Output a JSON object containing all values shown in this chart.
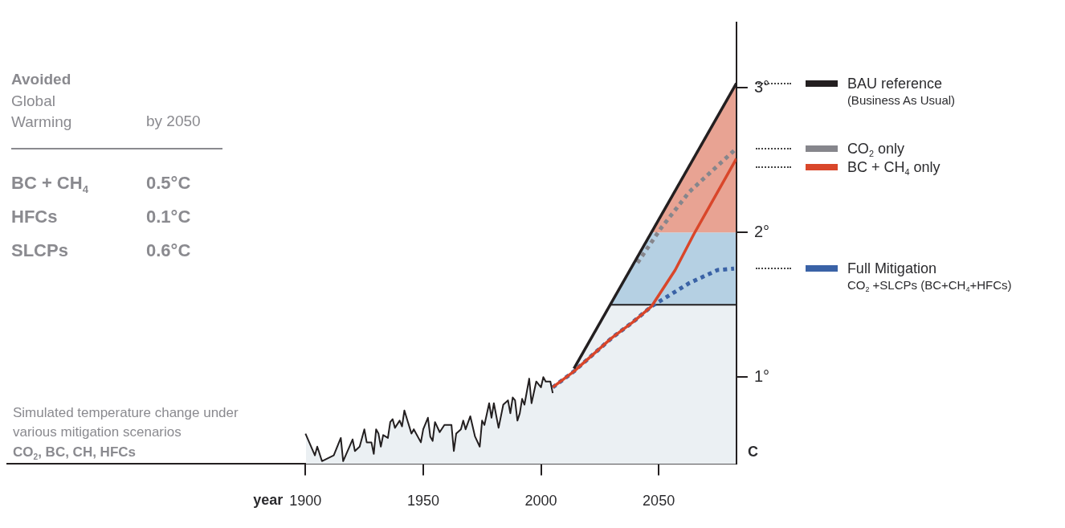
{
  "chart_data": {
    "type": "line",
    "title": "Avoided",
    "subtitle": "Global Warming",
    "xlabel": "year",
    "ylabel": "C",
    "annotations": [
      "by 2050",
      "BC + CH$_{4}$",
      "0.5°C",
      "HFCs",
      "0.1°C",
      "SLCPs",
      "0.6°C",
      "Simulated temperature change under various mitigation scenarios",
      "CO$_{2}$, BC, CH, HFCs"
    ],
    "xlim": [
      1773,
      2083
    ],
    "xticks": [
      1900,
      1950,
      2000,
      2050
    ],
    "ylim": [
      0.4,
      3.45
    ],
    "yticks": [
      {
        "value": 1,
        "label": "1°"
      },
      {
        "value": 2,
        "label": "2°"
      },
      {
        "value": 3,
        "label": "3°"
      }
    ],
    "legend": "right",
    "bands": [
      {
        "axis": "y",
        "from": 0.4,
        "to": 1.5,
        "color": "#ebf0f3"
      },
      {
        "axis": "y",
        "from": 1.5,
        "to": 2,
        "color": "#b5d0e3"
      },
      {
        "axis": "y",
        "from": 2,
        "to": 3.45,
        "color": "#e8a393"
      }
    ],
    "ref_lines": [
      {
        "axis": "y",
        "value": 1.5,
        "color": "#231f20"
      }
    ],
    "series": [
      {
        "color": "#231f20",
        "line_style": "solid",
        "x": [
          1900,
          1904,
          1905,
          1907,
          1912,
          1915,
          1916,
          1920,
          1921,
          1923,
          1925,
          1926,
          1928,
          1929,
          1930,
          1931,
          1932,
          1933,
          1935,
          1936,
          1937,
          1938,
          1940,
          1941,
          1942,
          1945,
          1946,
          1949,
          1950,
          1952,
          1953,
          1954,
          1955,
          1957,
          1959,
          1962,
          1963,
          1964,
          1966,
          1967,
          1968,
          1970,
          1972,
          1974,
          1975,
          1976,
          1978,
          1979,
          1980,
          1982,
          1984,
          1986,
          1987,
          1988,
          1989,
          1990,
          1991,
          1992,
          1993,
          1995,
          1996,
          1998,
          2000,
          2001,
          2002,
          2004,
          2005
        ],
        "values": [
          0.61,
          0.46,
          0.52,
          0.42,
          0.46,
          0.58,
          0.42,
          0.57,
          0.49,
          0.52,
          0.64,
          0.55,
          0.55,
          0.47,
          0.64,
          0.61,
          0.52,
          0.6,
          0.58,
          0.69,
          0.71,
          0.65,
          0.7,
          0.66,
          0.77,
          0.61,
          0.64,
          0.55,
          0.64,
          0.72,
          0.59,
          0.56,
          0.69,
          0.62,
          0.67,
          0.67,
          0.49,
          0.61,
          0.64,
          0.7,
          0.64,
          0.73,
          0.59,
          0.52,
          0.7,
          0.67,
          0.82,
          0.72,
          0.82,
          0.65,
          0.81,
          0.84,
          0.75,
          0.86,
          0.84,
          0.7,
          0.75,
          0.85,
          0.81,
          0.99,
          0.82,
          0.97,
          0.93,
          1.0,
          0.97,
          0.97,
          0.89
        ]
      },
      {
        "name": "BAU reference\n(Business As Usual)",
        "color": "#231f20",
        "line_style": "solid",
        "x": [
          2014,
          2083
        ],
        "values": [
          1.06,
          3.03
        ]
      },
      {
        "name": "CO$_{2}$ only",
        "color": "#86868c",
        "line_style": "dotted",
        "x": [
          2041,
          2051,
          2063,
          2083
        ],
        "values": [
          1.79,
          2.03,
          2.28,
          2.58
        ]
      },
      {
        "name": "BC + CH$_{4}$ only",
        "color": "#d9462a",
        "line_style": "solid",
        "x": [
          2005,
          2014,
          2030,
          2039,
          2047,
          2057,
          2065,
          2083
        ],
        "values": [
          0.93,
          1.04,
          1.27,
          1.38,
          1.49,
          1.74,
          1.99,
          2.51
        ]
      },
      {
        "name": "Full Mitigation\nCO$_{2}$ +SLCPs (BC+CH$_{4}$+HFCs)",
        "color": "#3a62a6",
        "line_style": "dotted",
        "x": [
          2005,
          2014,
          2030,
          2039,
          2047,
          2063,
          2075,
          2082
        ],
        "values": [
          0.93,
          1.04,
          1.27,
          1.38,
          1.49,
          1.65,
          1.74,
          1.75
        ]
      }
    ]
  }
}
